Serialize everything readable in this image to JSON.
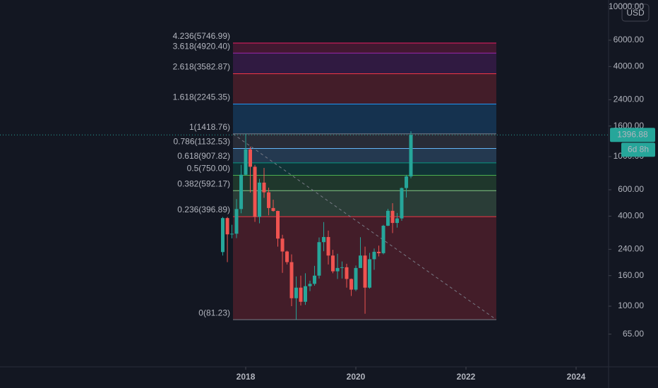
{
  "chart_data": {
    "type": "candlestick",
    "currency": "USD",
    "log_scale": true,
    "up_color": "#26a69a",
    "down_color": "#ef5350",
    "ylim": [
      39.3,
      11140
    ],
    "yticks": [
      {
        "value": 65,
        "label": "65.00"
      },
      {
        "value": 100,
        "label": "100.00"
      },
      {
        "value": 160,
        "label": "160.00"
      },
      {
        "value": 240,
        "label": "240.00"
      },
      {
        "value": 400,
        "label": "400.00"
      },
      {
        "value": 600,
        "label": "600.00"
      },
      {
        "value": 1000,
        "label": "1000.00"
      },
      {
        "value": 1600,
        "label": "1600.00"
      },
      {
        "value": 2400,
        "label": "2400.00"
      },
      {
        "value": 4000,
        "label": "4000.00"
      },
      {
        "value": 6000,
        "label": "6000.00"
      },
      {
        "value": 10000,
        "label": "10000.00"
      }
    ],
    "xlim": [
      2013.538,
      2024.564
    ],
    "xticks": [
      2018,
      2020,
      2022,
      2024
    ],
    "last_price": 1396.88,
    "countdown": "6d 8h",
    "candles": {
      "x": [
        2017.583,
        2017.667,
        2017.75,
        2017.833,
        2017.917,
        2018,
        2018.083,
        2018.167,
        2018.25,
        2018.333,
        2018.417,
        2018.5,
        2018.583,
        2018.667,
        2018.75,
        2018.833,
        2018.917,
        2019,
        2019.083,
        2019.167,
        2019.25,
        2019.333,
        2019.417,
        2019.5,
        2019.583,
        2019.667,
        2019.75,
        2019.833,
        2019.917,
        2020,
        2020.083,
        2020.167,
        2020.25,
        2020.333,
        2020.417,
        2020.5,
        2020.583,
        2020.667,
        2020.75,
        2020.833,
        2020.917,
        2021
      ],
      "open": [
        230,
        388,
        302,
        305,
        446,
        756,
        1118,
        855,
        395,
        670,
        577,
        453,
        433,
        283,
        232,
        197,
        113,
        133,
        107,
        136,
        141,
        160,
        268,
        290,
        218,
        171,
        180,
        182,
        152,
        129,
        180,
        218,
        133,
        206,
        231,
        226,
        345,
        434,
        360,
        386,
        616,
        737
      ],
      "high": [
        395,
        395,
        350,
        520,
        880,
        1418.76,
        1165,
        880,
        710,
        840,
        620,
        515,
        435,
        300,
        235,
        222,
        158,
        160,
        166,
        148,
        186,
        288,
        365,
        320,
        238,
        224,
        199,
        192,
        153,
        187,
        289,
        250,
        227,
        243,
        254,
        350,
        447,
        488,
        420,
        621,
        755,
        1476
      ],
      "low": [
        218,
        197,
        284,
        285,
        418,
        752,
        575,
        366,
        358,
        530,
        405,
        428,
        250,
        167,
        190,
        100,
        81.23,
        101,
        102,
        126,
        137,
        153,
        233,
        190,
        166,
        152,
        153,
        133,
        117,
        126,
        180,
        89,
        131,
        175,
        215,
        222,
        343,
        308,
        335,
        372,
        533,
        716
      ],
      "close": [
        388,
        302,
        305,
        446,
        756,
        1118,
        855,
        395,
        670,
        577,
        453,
        433,
        283,
        232,
        197,
        113,
        133,
        107,
        136,
        141,
        160,
        268,
        290,
        218,
        171,
        180,
        182,
        152,
        129,
        180,
        218,
        133,
        206,
        231,
        226,
        345,
        434,
        360,
        386,
        616,
        737,
        1396.88
      ]
    },
    "fib_x": [
      2017.769,
      2022.551
    ],
    "fib_levels": [
      {
        "label": "4.236(5746.99)",
        "value": 5746.99,
        "color": "#e91e63"
      },
      {
        "label": "3.618(4920.40)",
        "value": 4920.4,
        "color": "#9c27b0"
      },
      {
        "label": "2.618(3582.87)",
        "value": 3582.87,
        "color": "#f23645"
      },
      {
        "label": "1.618(2245.35)",
        "value": 2245.35,
        "color": "#2196f3"
      },
      {
        "label": "1(1418.76)",
        "value": 1418.76,
        "color": "#787b86"
      },
      {
        "label": "0.786(1132.53)",
        "value": 1132.53,
        "color": "#64b5f6"
      },
      {
        "label": "0.618(907.82)",
        "value": 907.82,
        "color": "#089981"
      },
      {
        "label": "0.5(750.00)",
        "value": 750.0,
        "color": "#4caf50"
      },
      {
        "label": "0.382(592.17)",
        "value": 592.17,
        "color": "#81c784"
      },
      {
        "label": "0.236(396.89)",
        "value": 396.89,
        "color": "#f23645"
      },
      {
        "label": "0(81.23)",
        "value": 81.23,
        "color": "#787b86"
      }
    ]
  }
}
